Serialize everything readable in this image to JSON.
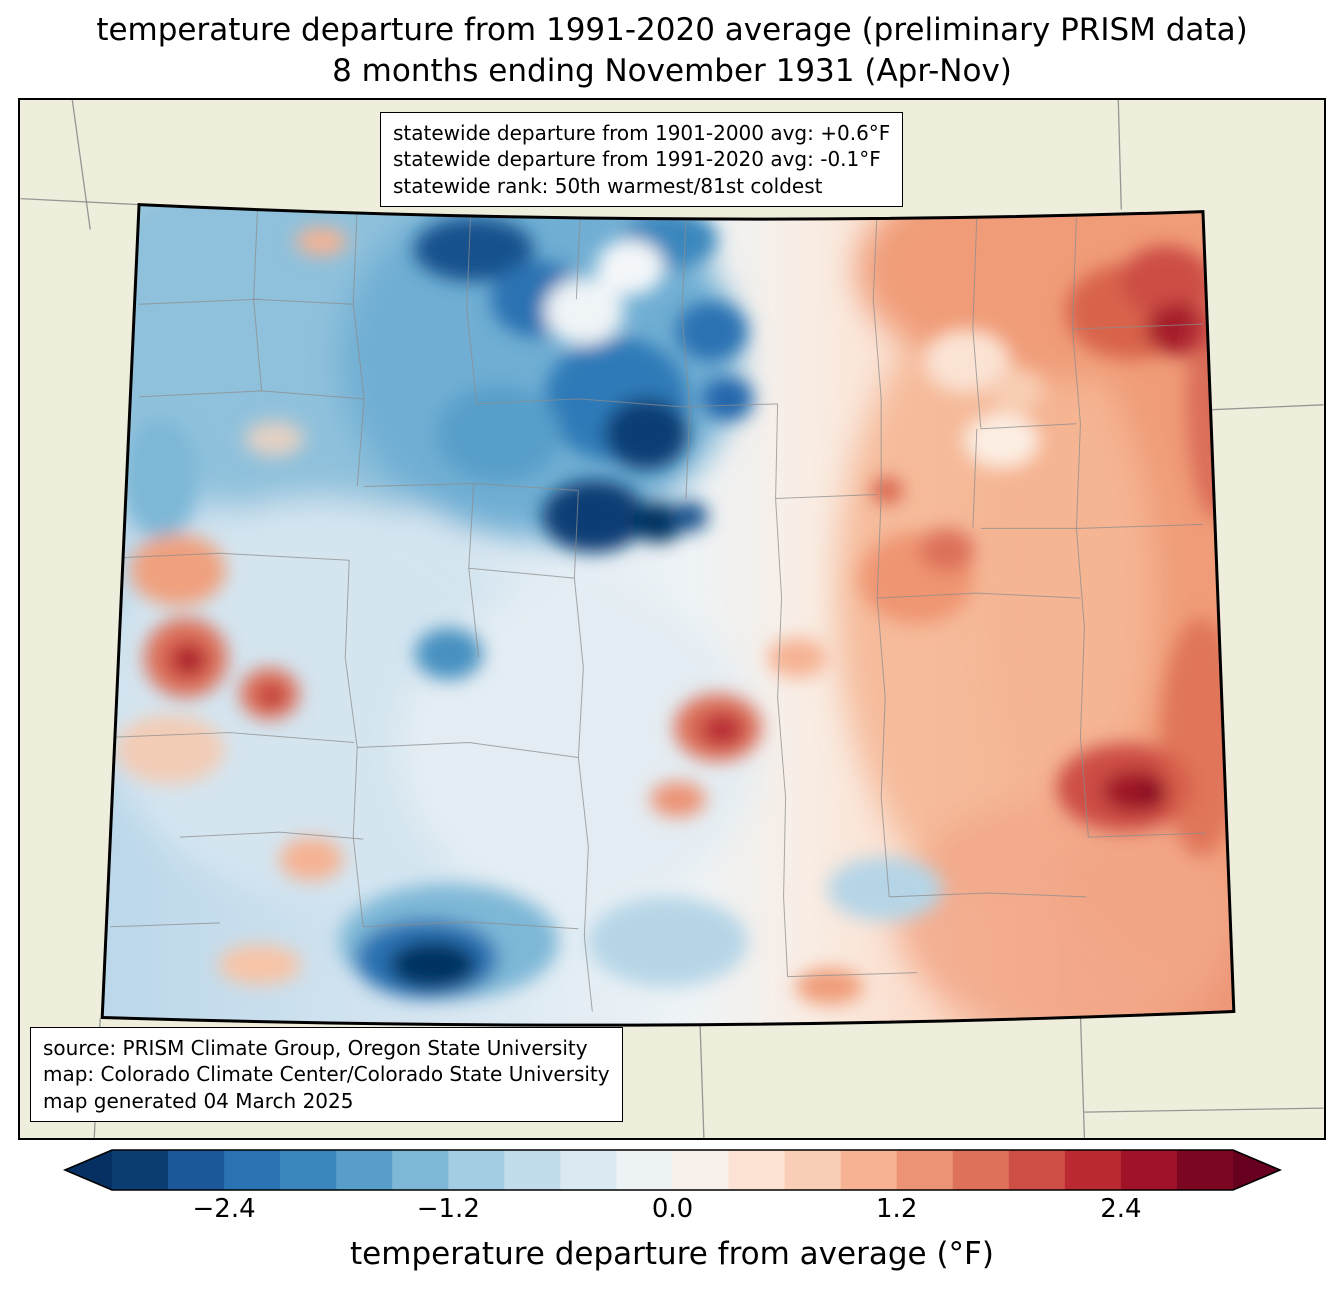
{
  "title": {
    "line1": "temperature departure from 1991-2020 average (preliminary PRISM data)",
    "line2": "8 months ending November 1931 (Apr-Nov)"
  },
  "stats_box": {
    "lines": [
      "statewide departure from 1901-2000 avg: +0.6°F",
      "statewide departure from 1991-2020 avg: -0.1°F",
      "statewide rank: 50th warmest/81st coldest"
    ]
  },
  "source_box": {
    "lines": [
      "source: PRISM Climate Group, Oregon State University",
      "map: Colorado Climate Center/Colorado State University",
      "map generated 04 March 2025"
    ]
  },
  "colorbar": {
    "label": "temperature departure from average (°F)",
    "ticks": [
      "−2.4",
      "−1.2",
      "0.0",
      "1.2",
      "2.4"
    ],
    "tick_values": [
      -2.4,
      -1.2,
      0.0,
      1.2,
      2.4
    ],
    "range_min": -3.0,
    "range_max": 3.0,
    "step": 0.3,
    "under_color": "#053061",
    "over_color": "#67001f",
    "segment_colors": [
      "#0c3e74",
      "#1a5899",
      "#2a72b2",
      "#3b87bd",
      "#579fca",
      "#7eb8d7",
      "#a2cde2",
      "#c1ddeb",
      "#dbe9f2",
      "#edf2f5",
      "#f8f0eb",
      "#fbe2d3",
      "#facdb6",
      "#f6b293",
      "#ec9375",
      "#dd715a",
      "#cd4e44",
      "#bb2a33",
      "#9f1228",
      "#7a0622"
    ]
  },
  "map": {
    "region": "Colorado",
    "land_color": "#efeedd",
    "state_border_color": "#000000",
    "county_line_color": "#8c8c8c"
  }
}
